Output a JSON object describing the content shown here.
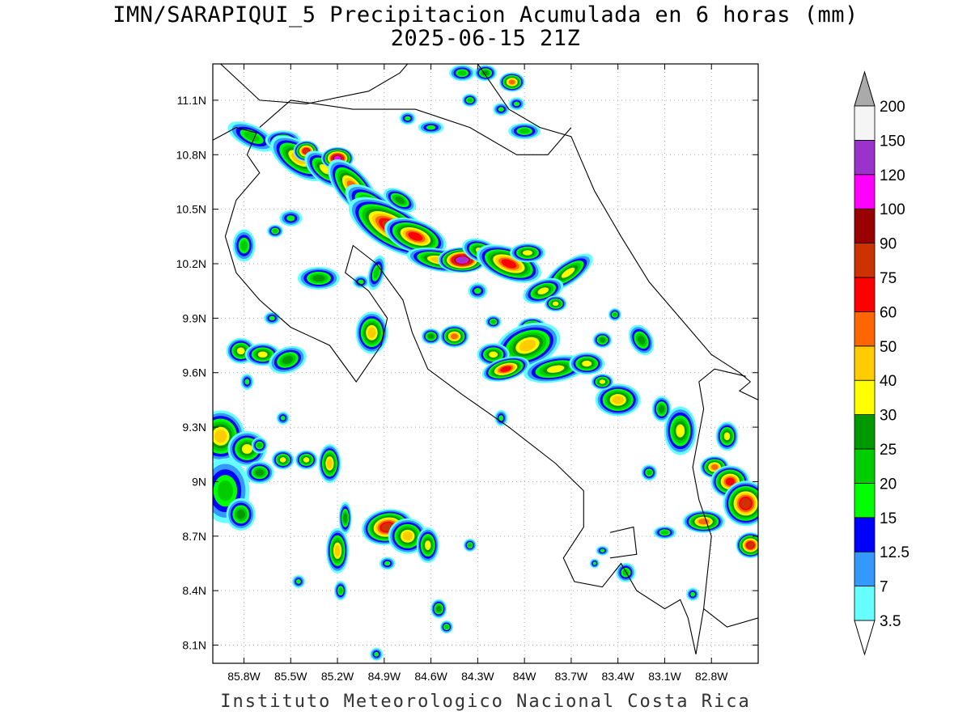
{
  "title": {
    "line1": "IMN/SARAPIQUI_5 Precipitacion Acumulada en 6 horas (mm)",
    "line2": "2025-06-15 21Z"
  },
  "footer": "Instituto Meteorologico Nacional Costa Rica",
  "map": {
    "lon_range": [
      -86.0,
      -82.5
    ],
    "lat_range": [
      8.0,
      11.3
    ],
    "lat_ticks": [
      "11.1N",
      "10.8N",
      "10.5N",
      "10.2N",
      "9.9N",
      "9.6N",
      "9.3N",
      "9N",
      "8.7N",
      "8.4N",
      "8.1N"
    ],
    "lon_ticks": [
      "85.8W",
      "85.5W",
      "85.2W",
      "84.9W",
      "84.6W",
      "84.3W",
      "84W",
      "83.7W",
      "83.4W",
      "83.1W",
      "82.8W"
    ],
    "grid": "dotted"
  },
  "colorbar": {
    "levels": [
      "3.5",
      "7",
      "12.5",
      "15",
      "20",
      "25",
      "30",
      "40",
      "50",
      "60",
      "75",
      "90",
      "100",
      "120",
      "150",
      "200"
    ],
    "colors": [
      "#66ffff",
      "#3399ff",
      "#0000ff",
      "#00ff00",
      "#00cc00",
      "#009900",
      "#ffff00",
      "#ffcc00",
      "#ff6600",
      "#ff0000",
      "#cc3300",
      "#990000",
      "#ff00ff",
      "#9933cc",
      "#f5f5f5"
    ],
    "upper_extension_color": "#aaaaaa",
    "lower_extension_color": "#ffffff"
  }
}
